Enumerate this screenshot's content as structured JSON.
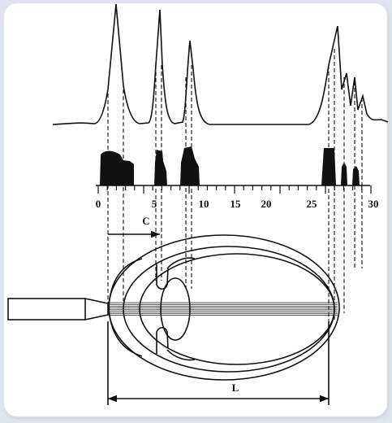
{
  "axis": {
    "ticks": [
      "0",
      "5",
      "10",
      "15",
      "20",
      "25",
      "30"
    ]
  },
  "labels": {
    "c": "C",
    "l": "L"
  }
}
